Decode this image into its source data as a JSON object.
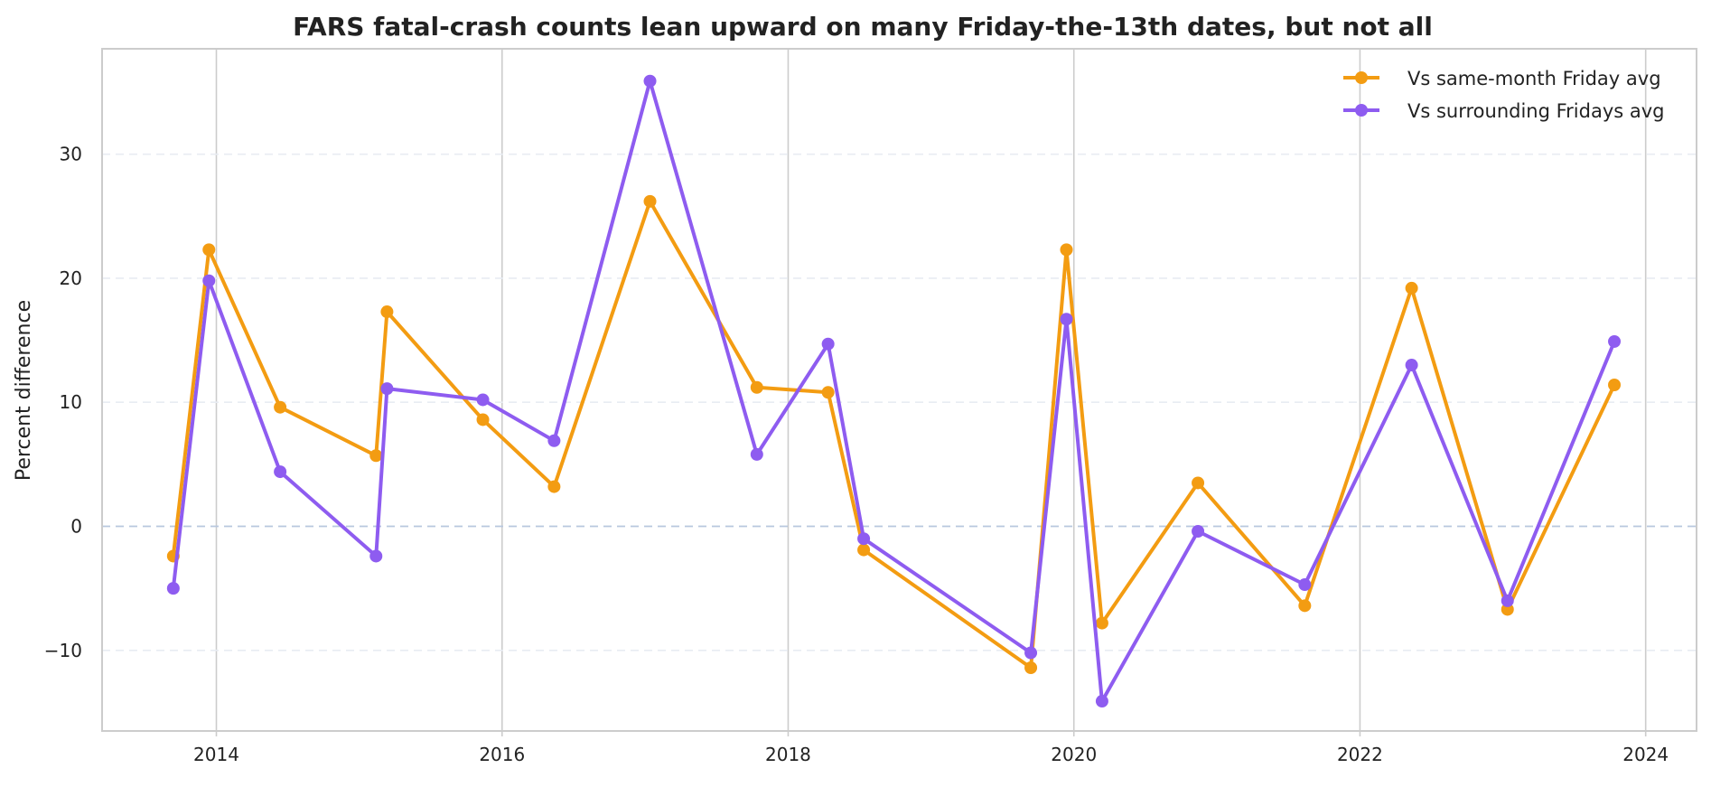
{
  "chart_data": {
    "type": "line",
    "title": "FARS fatal-crash counts lean upward on many Friday-the-13th dates, but not all",
    "xlabel": "",
    "ylabel": "Percent difference",
    "x_type": "date",
    "xlim": [
      "2013-03-15",
      "2024-05-10"
    ],
    "ylim": [
      -16.5,
      38.5
    ],
    "x_ticks": [
      "2014-01-01",
      "2016-01-01",
      "2018-01-01",
      "2020-01-01",
      "2022-01-01",
      "2024-01-01"
    ],
    "x_tick_labels": [
      "2014",
      "2016",
      "2018",
      "2020",
      "2022",
      "2024"
    ],
    "y_ticks": [
      -10,
      0,
      10,
      20,
      30
    ],
    "y_tick_labels": [
      "−10",
      "0",
      "10",
      "20",
      "30"
    ],
    "x": [
      "2013-09-13",
      "2013-12-13",
      "2014-06-13",
      "2015-02-13",
      "2015-03-13",
      "2015-11-13",
      "2016-05-13",
      "2017-01-13",
      "2017-10-13",
      "2018-04-13",
      "2018-07-13",
      "2019-09-13",
      "2019-12-13",
      "2020-03-13",
      "2020-11-13",
      "2021-08-13",
      "2022-05-13",
      "2023-01-13",
      "2023-10-13"
    ],
    "series": [
      {
        "name": "Vs same-month Friday avg",
        "color": "#f39c12",
        "values": [
          -2.4,
          22.3,
          9.6,
          5.7,
          17.3,
          8.6,
          3.2,
          26.2,
          11.2,
          10.8,
          -1.9,
          -11.4,
          22.3,
          -7.8,
          3.5,
          -6.4,
          19.2,
          -6.7,
          11.4
        ]
      },
      {
        "name": "Vs surrounding Fridays avg",
        "color": "#8e5cf0",
        "values": [
          -5.0,
          19.8,
          4.4,
          -2.4,
          11.1,
          10.2,
          6.9,
          35.9,
          5.8,
          14.7,
          -1.0,
          -10.2,
          16.7,
          -14.1,
          -0.4,
          -4.7,
          13.0,
          -6.0,
          14.9
        ]
      }
    ],
    "zero_line": true,
    "grid": true,
    "legend_position": "top-right"
  }
}
